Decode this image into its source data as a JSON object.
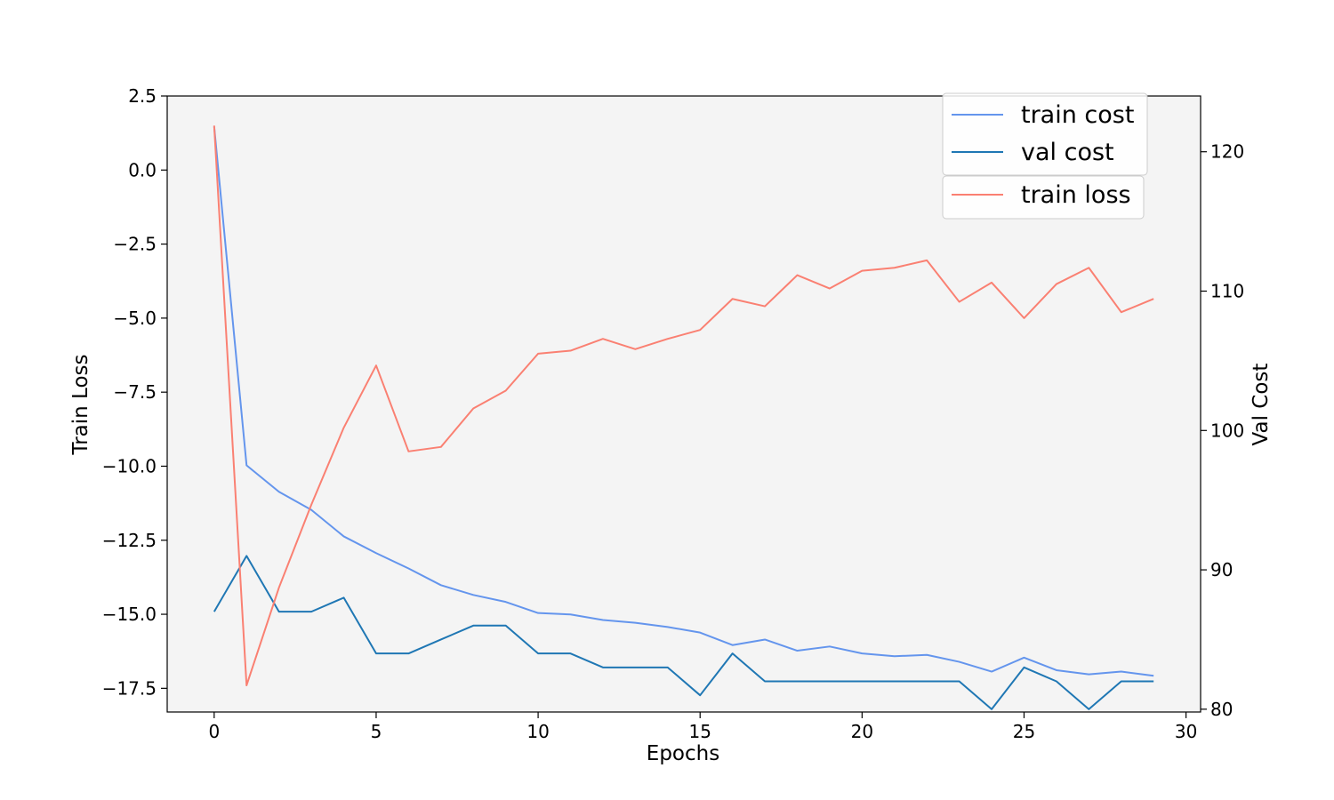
{
  "chart_data": {
    "type": "line",
    "title": "",
    "xlabel": "Epochs",
    "ylabel_left": "Train Loss",
    "ylabel_right": "Val Cost",
    "xlim": [
      -1.45,
      30.45
    ],
    "ylim_left": [
      -18.3,
      2.5
    ],
    "ylim_right": [
      79.8,
      124
    ],
    "x_ticks": [
      0,
      5,
      10,
      15,
      20,
      25,
      30
    ],
    "y_left_ticks": [
      2.5,
      0.0,
      -2.5,
      -5.0,
      -7.5,
      -10.0,
      -12.5,
      -15.0,
      -17.5
    ],
    "y_right_ticks": [
      120,
      110,
      100,
      90,
      80
    ],
    "grid": false,
    "legend_placement": "top-right",
    "x": [
      0,
      1,
      2,
      3,
      4,
      5,
      6,
      7,
      8,
      9,
      10,
      11,
      12,
      13,
      14,
      15,
      16,
      17,
      18,
      19,
      20,
      21,
      22,
      23,
      24,
      25,
      26,
      27,
      28,
      29
    ],
    "series": [
      {
        "name": "train cost",
        "axis": "right",
        "color": "#6495ED",
        "values": [
          121.8,
          97.5,
          95.6,
          94.3,
          92.4,
          91.2,
          90.1,
          88.9,
          88.2,
          87.7,
          86.9,
          86.8,
          86.4,
          86.2,
          85.9,
          85.5,
          84.6,
          85.0,
          84.2,
          84.5,
          84.0,
          83.8,
          83.9,
          83.4,
          82.7,
          83.7,
          82.8,
          82.5,
          82.7,
          82.4
        ],
        "legend_group": 1
      },
      {
        "name": "val cost",
        "axis": "right",
        "color": "#1F77B4",
        "values": [
          87,
          91,
          87,
          87,
          88,
          84,
          84,
          85,
          86,
          86,
          84,
          84,
          83,
          83,
          83,
          81,
          84,
          82,
          82,
          82,
          82,
          82,
          82,
          82,
          80,
          83,
          82,
          80,
          82,
          82
        ],
        "legend_group": 1
      },
      {
        "name": "train loss",
        "axis": "left",
        "color": "#FA8072",
        "values": [
          1.5,
          -17.4,
          -14.1,
          -11.3,
          -8.7,
          -6.6,
          -9.5,
          -9.35,
          -8.05,
          -7.45,
          -6.2,
          -6.1,
          -5.7,
          -6.05,
          -5.7,
          -5.4,
          -4.35,
          -4.6,
          -3.55,
          -4.0,
          -3.4,
          -3.3,
          -3.05,
          -4.45,
          -3.8,
          -5.0,
          -3.85,
          -3.3,
          -4.8,
          -4.35
        ],
        "legend_group": 2
      }
    ]
  },
  "colors": {
    "plot_background": "#F4F4F4",
    "axes_border": "#000000"
  }
}
